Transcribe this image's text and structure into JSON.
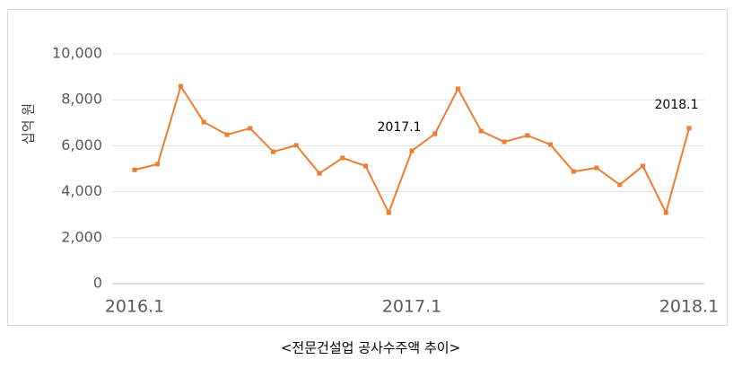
{
  "chart_data": {
    "type": "line",
    "y_label": "십억 원",
    "caption": "<전문건설업 공사수주액 추이>",
    "categories": [
      "2016.1",
      null,
      null,
      null,
      null,
      null,
      null,
      null,
      null,
      null,
      null,
      null,
      "2017.1",
      null,
      null,
      null,
      null,
      null,
      null,
      null,
      null,
      null,
      null,
      null,
      "2018.1"
    ],
    "series": [
      {
        "name": "공사수주액",
        "color": "#ed7d31",
        "values": [
          4950,
          5200,
          8590,
          7030,
          6480,
          6760,
          5740,
          6020,
          4800,
          5470,
          5120,
          3090,
          5780,
          6520,
          8480,
          6640,
          6170,
          6450,
          6050,
          4880,
          5040,
          4300,
          5120,
          3090,
          6760
        ]
      }
    ],
    "annotations": [
      {
        "text": "2017.1"
      },
      {
        "text": "2018.1"
      }
    ],
    "ylim": [
      0,
      10000
    ],
    "yticks": [
      0,
      {
        "value": 2000,
        "label": "2,000"
      },
      {
        "value": 4000,
        "label": "4,000"
      },
      {
        "value": 6000,
        "label": "6,000"
      },
      {
        "value": 8000,
        "label": "8,000"
      },
      {
        "value": 10000,
        "label": "10,000"
      }
    ],
    "grid": true
  }
}
